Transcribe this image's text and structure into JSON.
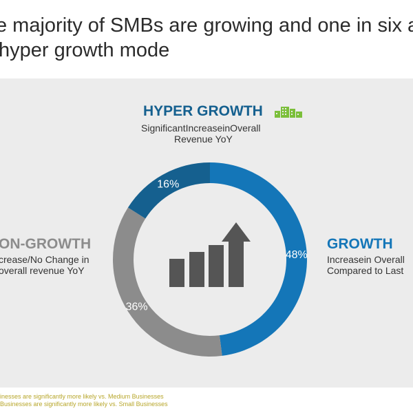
{
  "title": {
    "line1": "e majority of SMBs are growing and one in six a",
    "line2": "hyper growth mode"
  },
  "colors": {
    "hyper": "#15608f",
    "growth": "#1476b8",
    "nongrowth": "#8c8c8c",
    "panel": "#ececec",
    "icon_green": "#7bbf3a",
    "footnote": "#b7a62a",
    "bars_icon": "#555555"
  },
  "labels": {
    "hyper_title": "HYPER GROWTH",
    "hyper_desc_1": "SignificantIncreaseinOverall",
    "hyper_desc_2": "Revenue YoY",
    "growth_title": "GROWTH",
    "growth_desc_1": "Increasein Overall",
    "growth_desc_2": "Compared to Last",
    "nongrowth_title": "ON-GROWTH",
    "nongrowth_desc_1": "crease/No Change in",
    "nongrowth_desc_2": "overall revenue YoY"
  },
  "icons": {
    "hyper": "building-icon",
    "center": "growth-bar-arrow-icon"
  },
  "footnotes": {
    "line1": "inesses are significantly more likely vs. Medium Businesses",
    "line2": "Businesses are significantly more likely vs. Small Businesses"
  },
  "chart_data": {
    "type": "pie",
    "donut": true,
    "categories": [
      "Growth",
      "Non-Growth",
      "Hyper Growth"
    ],
    "values": [
      48,
      36,
      16
    ],
    "value_labels": [
      "48%",
      "36%",
      "16%"
    ],
    "colors": [
      "#1476b8",
      "#8c8c8c",
      "#15608f"
    ]
  }
}
